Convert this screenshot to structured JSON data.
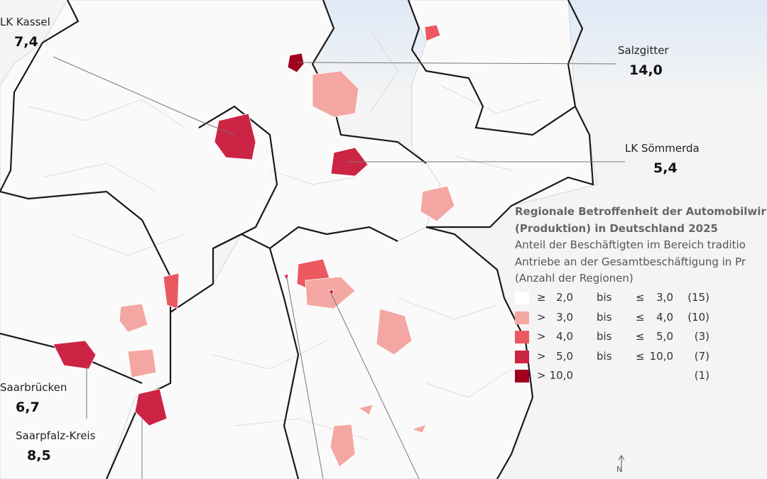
{
  "callouts": [
    {
      "name": "LK Kassel",
      "value": "7,4"
    },
    {
      "name": "Salzgitter",
      "value": "14,0"
    },
    {
      "name": "LK Sömmerda",
      "value": "5,4"
    },
    {
      "name": "Saarbrücken",
      "value": "6,7"
    },
    {
      "name": "Saarpfalz-Kreis",
      "value": "8,5"
    }
  ],
  "legend": {
    "title": "Regionale Betroffenheit der Automobilwir",
    "title_line2": "(Produktion) in Deutschland 2025",
    "subtitle_lines": [
      "Anteil der Beschäftigten im Bereich traditio",
      "Antriebe an der Gesamtbeschäftigung in Pr",
      "(Anzahl der Regionen)"
    ],
    "rows": [
      {
        "op1": "≥",
        "from": "2,0",
        "bis": "bis",
        "op2": "≤",
        "to": "3,0",
        "count": "(15)",
        "color": "#ffffff"
      },
      {
        "op1": ">",
        "from": "3,0",
        "bis": "bis",
        "op2": "≤",
        "to": "4,0",
        "count": "(10)",
        "color": "#f4a7a2"
      },
      {
        "op1": ">",
        "from": "4,0",
        "bis": "bis",
        "op2": "≤",
        "to": "5,0",
        "count": "(3)",
        "color": "#ec5860"
      },
      {
        "op1": ">",
        "from": "5,0",
        "bis": "bis",
        "op2": "≤",
        "to": "10,0",
        "count": "(7)",
        "color": "#cc2444"
      },
      {
        "op1": ">",
        "from": "10,0",
        "count": "(1)",
        "color": "#a0001e"
      }
    ]
  },
  "north": "N"
}
